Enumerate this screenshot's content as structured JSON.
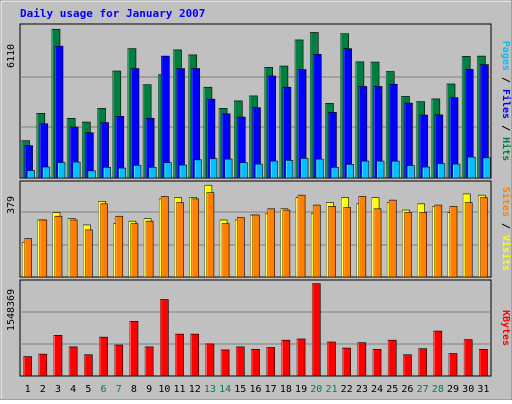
{
  "chart_data": [
    {
      "type": "bar",
      "title": "Daily usage for January 2007",
      "ylabel_parts": [
        "Pages",
        "Files",
        "Hits"
      ],
      "ymax_label": "6110",
      "ylim": [
        0,
        6110
      ],
      "categories": [
        "1",
        "2",
        "3",
        "4",
        "5",
        "6",
        "7",
        "8",
        "9",
        "10",
        "11",
        "12",
        "13",
        "14",
        "15",
        "16",
        "17",
        "18",
        "19",
        "20",
        "21",
        "22",
        "23",
        "24",
        "25",
        "26",
        "27",
        "28",
        "29",
        "30",
        "31"
      ],
      "weekend_days": [
        "6",
        "7",
        "13",
        "14",
        "20",
        "21",
        "27",
        "28"
      ],
      "series": [
        {
          "name": "Hits",
          "color": "#008040",
          "values": [
            1500,
            2600,
            5980,
            2400,
            2250,
            2800,
            4300,
            5200,
            3750,
            4150,
            5150,
            4950,
            3650,
            2800,
            3100,
            3300,
            4450,
            4500,
            5550,
            5850,
            3000,
            5800,
            4670,
            4660,
            4280,
            3280,
            3070,
            3180,
            3780,
            4890,
            4900
          ]
        },
        {
          "name": "Files",
          "color": "#0000ff",
          "values": [
            1300,
            2180,
            5300,
            2050,
            1820,
            2230,
            2480,
            4400,
            2400,
            4900,
            4400,
            4400,
            3170,
            2580,
            2450,
            2830,
            4100,
            3650,
            4360,
            4970,
            2640,
            5200,
            3680,
            3680,
            3770,
            3010,
            2530,
            2540,
            3230,
            4370,
            4560
          ]
        },
        {
          "name": "Pages",
          "color": "#00c0ff",
          "values": [
            300,
            440,
            620,
            640,
            290,
            430,
            400,
            510,
            430,
            620,
            520,
            730,
            780,
            760,
            620,
            560,
            680,
            710,
            790,
            760,
            430,
            550,
            680,
            680,
            680,
            500,
            440,
            580,
            560,
            840,
            810
          ]
        }
      ]
    },
    {
      "type": "bar",
      "ylabel_parts": [
        "Sites",
        "Visits"
      ],
      "ymax_label": "379",
      "ylim": [
        0,
        379
      ],
      "series": [
        {
          "name": "Visits",
          "color": "#ffff00",
          "values": [
            140,
            230,
            260,
            235,
            210,
            305,
            215,
            225,
            235,
            315,
            320,
            320,
            370,
            230,
            230,
            250,
            255,
            275,
            320,
            255,
            300,
            320,
            295,
            320,
            300,
            270,
            295,
            285,
            260,
            335,
            330
          ]
        },
        {
          "name": "Sites",
          "color": "#ff8000",
          "values": [
            155,
            230,
            245,
            230,
            190,
            295,
            245,
            215,
            225,
            325,
            300,
            315,
            340,
            215,
            240,
            250,
            275,
            270,
            330,
            290,
            285,
            280,
            325,
            275,
            310,
            260,
            260,
            290,
            285,
            300,
            320
          ]
        }
      ]
    },
    {
      "type": "bar",
      "ylabel_parts": [
        "KBytes"
      ],
      "ymax_label": "1548369",
      "ylim": [
        0,
        1548369
      ],
      "series": [
        {
          "name": "KBytes",
          "color": "#ff0000",
          "values": [
            320000,
            360000,
            670000,
            480000,
            350000,
            640000,
            510000,
            900000,
            480000,
            1260000,
            690000,
            690000,
            530000,
            430000,
            480000,
            440000,
            470000,
            590000,
            610000,
            1520000,
            560000,
            460000,
            550000,
            440000,
            590000,
            350000,
            450000,
            740000,
            370000,
            600000,
            440000
          ]
        }
      ]
    }
  ]
}
